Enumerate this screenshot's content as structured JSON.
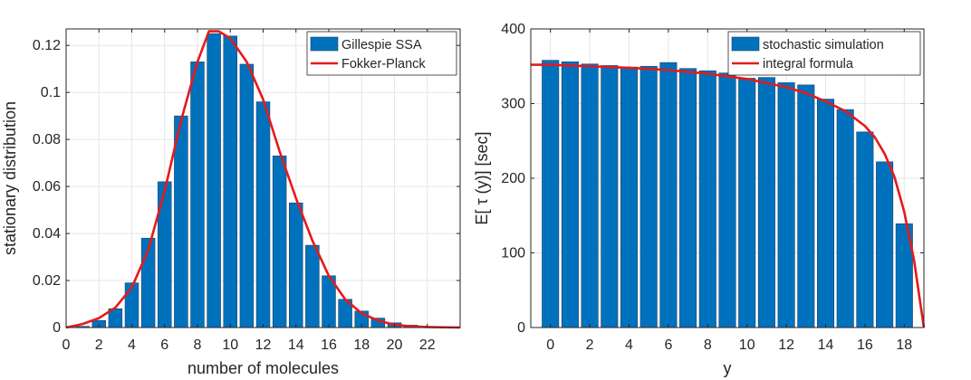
{
  "chart_data": [
    {
      "type": "bar",
      "xlabel": "number of molecules",
      "ylabel": "stationary distribution",
      "xlim": [
        0,
        24
      ],
      "ylim": [
        0,
        0.127
      ],
      "xticks": [
        0,
        2,
        4,
        6,
        8,
        10,
        12,
        14,
        16,
        18,
        20,
        22
      ],
      "yticks": [
        0,
        0.02,
        0.04,
        0.06,
        0.08,
        0.1,
        0.12
      ],
      "ytick_labels": [
        "0",
        "0.02",
        "0.04",
        "0.06",
        "0.08",
        "0.1",
        "0.12"
      ],
      "grid": true,
      "legend_position": "top-right",
      "series": [
        {
          "name": "Gillespie SSA",
          "kind": "bar",
          "color": "#0072BD",
          "x": [
            1,
            2,
            3,
            4,
            5,
            6,
            7,
            8,
            9,
            10,
            11,
            12,
            13,
            14,
            15,
            16,
            17,
            18,
            19,
            20,
            21,
            22,
            23
          ],
          "values": [
            0.0005,
            0.003,
            0.008,
            0.019,
            0.038,
            0.062,
            0.09,
            0.113,
            0.125,
            0.124,
            0.112,
            0.096,
            0.073,
            0.053,
            0.035,
            0.022,
            0.012,
            0.007,
            0.004,
            0.002,
            0.001,
            0.0004,
            0.0002
          ]
        },
        {
          "name": "Fokker-Planck",
          "kind": "line",
          "color": "#E41A1C",
          "x": [
            0,
            1,
            2,
            3,
            4,
            5,
            6,
            7,
            8,
            8.7,
            9.3,
            10,
            11,
            12,
            13,
            14,
            15,
            16,
            17,
            18,
            19,
            20,
            21,
            22,
            23,
            24
          ],
          "values": [
            0.0,
            0.0015,
            0.004,
            0.0085,
            0.017,
            0.033,
            0.058,
            0.088,
            0.113,
            0.126,
            0.126,
            0.123,
            0.113,
            0.097,
            0.075,
            0.055,
            0.037,
            0.022,
            0.012,
            0.006,
            0.003,
            0.0012,
            0.0005,
            0.0002,
            0.0001,
            0.0
          ]
        }
      ]
    },
    {
      "type": "bar",
      "xlabel": "y",
      "ylabel": "E[ τ (y)] [sec]",
      "xlim": [
        -1,
        19
      ],
      "ylim": [
        0,
        400
      ],
      "xticks": [
        0,
        2,
        4,
        6,
        8,
        10,
        12,
        14,
        16,
        18
      ],
      "yticks": [
        0,
        100,
        200,
        300,
        400
      ],
      "ytick_labels": [
        "0",
        "100",
        "200",
        "300",
        "400"
      ],
      "grid": true,
      "legend_position": "top-right",
      "series": [
        {
          "name": "stochastic simulation",
          "kind": "bar",
          "color": "#0072BD",
          "x": [
            0,
            1,
            2,
            3,
            4,
            5,
            6,
            7,
            8,
            9,
            10,
            11,
            12,
            13,
            14,
            15,
            16,
            17,
            18
          ],
          "values": [
            358,
            356,
            353,
            351,
            349,
            350,
            355,
            347,
            344,
            341,
            334,
            335,
            328,
            325,
            306,
            292,
            262,
            222,
            139
          ]
        },
        {
          "name": "integral formula",
          "kind": "line",
          "color": "#E41A1C",
          "x": [
            -1,
            0,
            2,
            4,
            6,
            8,
            10,
            12,
            13,
            14,
            15,
            16,
            16.5,
            17,
            17.5,
            18,
            18.5,
            19
          ],
          "values": [
            352,
            352,
            350,
            348,
            345,
            340,
            333,
            322,
            314,
            303,
            290,
            270,
            255,
            233,
            202,
            155,
            90,
            0
          ]
        }
      ]
    }
  ]
}
